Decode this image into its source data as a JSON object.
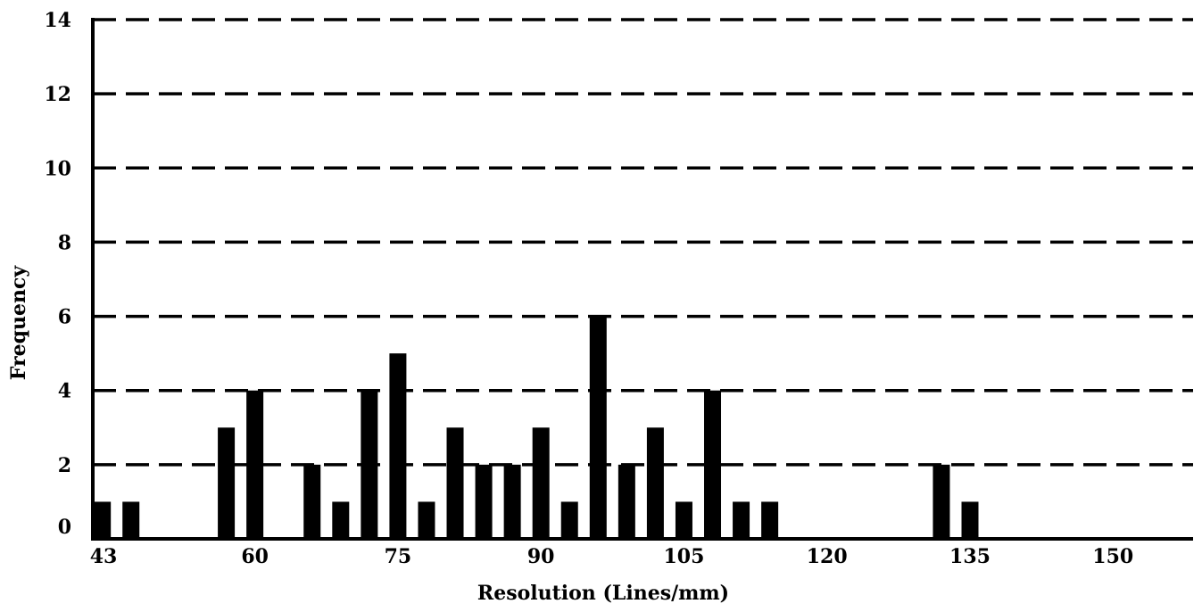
{
  "chart_data": {
    "type": "bar",
    "title": "",
    "xlabel": "Resolution (Lines/mm)",
    "ylabel": "Frequency",
    "xlim": [
      43,
      160
    ],
    "ylim": [
      0,
      14
    ],
    "x_ticks": [
      43,
      60,
      75,
      90,
      105,
      120,
      135,
      150
    ],
    "y_ticks": [
      0,
      2,
      4,
      6,
      8,
      10,
      12,
      14
    ],
    "grid": "horizontal dashed",
    "bar_color": "#000000",
    "x": [
      44,
      47,
      57,
      60,
      66,
      69,
      72,
      75,
      78,
      81,
      84,
      87,
      90,
      93,
      96,
      99,
      102,
      105,
      108,
      111,
      114,
      132,
      135
    ],
    "values": [
      1,
      1,
      3,
      4,
      2,
      1,
      4,
      5,
      1,
      3,
      2,
      2,
      3,
      1,
      6,
      2,
      3,
      1,
      4,
      1,
      1,
      2,
      1
    ]
  }
}
